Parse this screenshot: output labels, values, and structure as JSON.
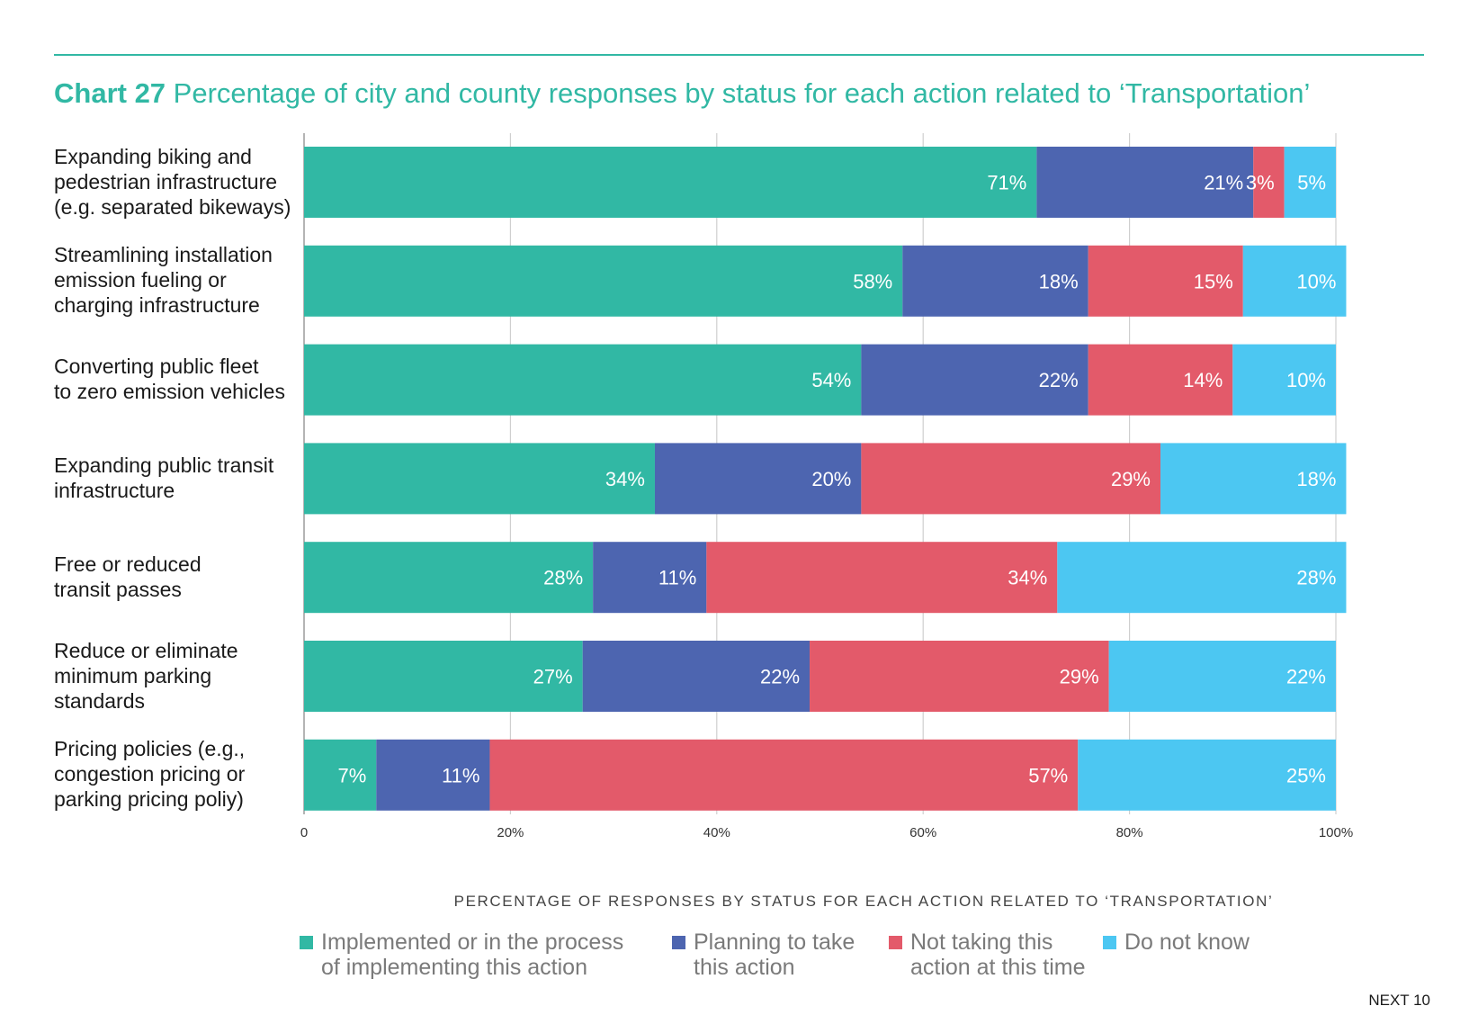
{
  "header": {
    "chart_number": "Chart 27",
    "title": "Percentage of city and county responses by status for each action related to ‘Transportation’"
  },
  "footer": {
    "brand": "NEXT 10"
  },
  "colors": {
    "rule": "#31b8a4",
    "title": "#31b8a4",
    "grid": "#cfcfcf"
  },
  "chart_data": {
    "type": "bar",
    "orientation": "horizontal",
    "stacked": true,
    "xlabel": "PERCENTAGE OF RESPONSES BY STATUS FOR EACH ACTION RELATED TO ‘TRANSPORTATION’",
    "xlim": [
      0,
      100
    ],
    "xticks": [
      "0",
      "20%",
      "40%",
      "60%",
      "80%",
      "100%"
    ],
    "grid": "vertical",
    "legend_position": "bottom",
    "categories": [
      [
        "Expanding biking and",
        "pedestrian infrastructure",
        "(e.g. separated bikeways)"
      ],
      [
        "Streamlining installation",
        "emission fueling or",
        "charging infrastructure"
      ],
      [
        "Converting public fleet",
        "to zero emission vehicles"
      ],
      [
        "Expanding public transit",
        "infrastructure"
      ],
      [
        "Free or reduced",
        "transit passes"
      ],
      [
        "Reduce or eliminate",
        "minimum parking",
        "standards"
      ],
      [
        "Pricing policies (e.g.,",
        "congestion pricing or",
        "parking pricing poliy)"
      ]
    ],
    "series": [
      {
        "name": [
          "Implemented or in the process",
          "of implementing this action"
        ],
        "color": "#31b8a4",
        "values": [
          71,
          58,
          54,
          34,
          28,
          27,
          7
        ]
      },
      {
        "name": [
          "Planning to take",
          "this action"
        ],
        "color": "#4d65b0",
        "values": [
          21,
          18,
          22,
          20,
          11,
          22,
          11
        ]
      },
      {
        "name": [
          "Not taking this",
          "action at this time"
        ],
        "color": "#e35a6a",
        "values": [
          3,
          15,
          14,
          29,
          34,
          29,
          57
        ]
      },
      {
        "name": [
          "Do not know"
        ],
        "color": "#4cc7f2",
        "values": [
          5,
          10,
          10,
          18,
          28,
          22,
          25
        ]
      }
    ]
  }
}
